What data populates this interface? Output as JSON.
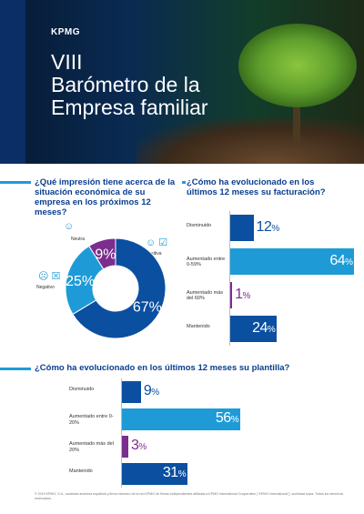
{
  "hero": {
    "logo": "KPMG",
    "title_lines": [
      "VIII",
      "Barómetro de la",
      "Empresa familiar"
    ]
  },
  "colors": {
    "dark_blue": "#0b4fa0",
    "light_blue": "#1e9bd7",
    "purple": "#7b2e8e",
    "title_blue": "#0a3d8f"
  },
  "icons": [
    "smile-icon",
    "neutral-icon",
    "sad-icon",
    "check-icon"
  ],
  "q1": {
    "title": "¿Qué impresión tiene acerca de la situación económica de su empresa en los próximos 12 meses?",
    "labels": {
      "neutral": "Neutra",
      "positive": "Positiva",
      "negative": "Negativo"
    }
  },
  "q2": {
    "title": "¿Cómo ha evolucionado  en los últimos 12 meses su facturación?"
  },
  "q3": {
    "title": "¿Cómo ha evolucionado en los últimos 12 meses su plantilla?"
  },
  "chart_data": [
    {
      "type": "pie",
      "categories": [
        "Positiva",
        "Neutra",
        "Negativo"
      ],
      "values": [
        67,
        25,
        9
      ],
      "labels": [
        "67%",
        "25%",
        "9%"
      ],
      "donut": true
    },
    {
      "type": "bar",
      "orientation": "horizontal",
      "categories": [
        "Disminuido",
        "Aumentado entre 0-59%",
        "Aumentado más del 60%",
        "Mantenido"
      ],
      "values": [
        12,
        64,
        1,
        24
      ],
      "labels": [
        "12",
        "64",
        "1",
        "24"
      ],
      "unit": "%",
      "xlim": [
        0,
        100
      ]
    },
    {
      "type": "bar",
      "orientation": "horizontal",
      "categories": [
        "Disminuido",
        "Aumentado entre 0-20%",
        "Aumentado más del 20%",
        "Mantenido"
      ],
      "values": [
        9,
        56,
        3,
        31
      ],
      "labels": [
        "9",
        "56",
        "3",
        "31"
      ],
      "unit": "%",
      "xlim": [
        0,
        100
      ]
    }
  ],
  "footer": "© 2019 KPMG, S.A., sociedad anónima española y firma miembro de la red KPMG de firmas independientes afiliadas a KPMG International Cooperative (\"KPMG International\"), sociedad suiza. Todos los derechos reservados."
}
